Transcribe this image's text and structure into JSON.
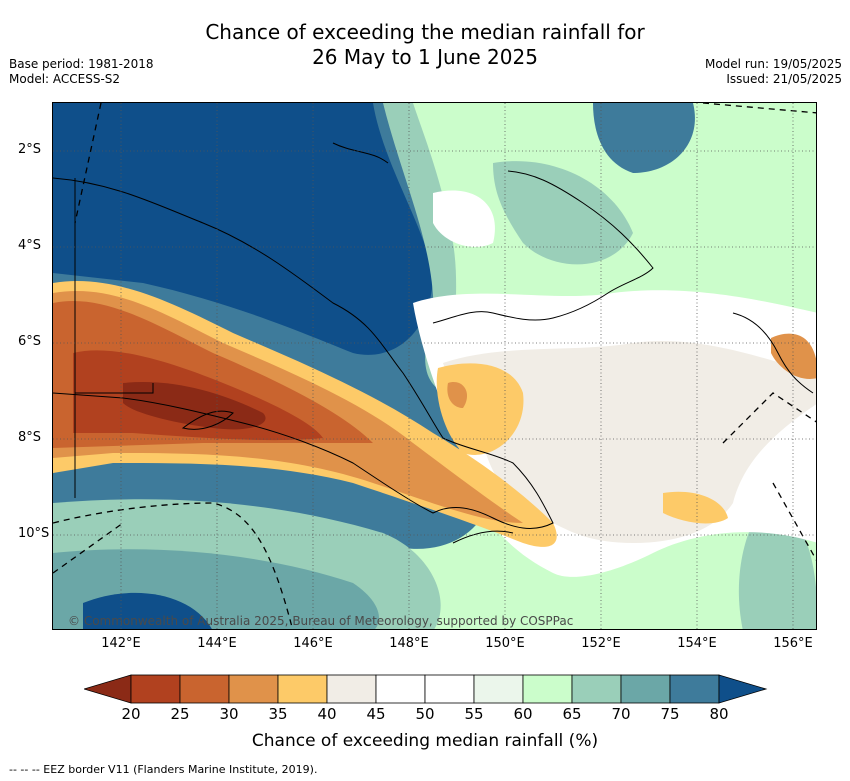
{
  "title_line1": "Chance of exceeding the median rainfall for",
  "title_line2": "26 May to 1 June 2025",
  "base_period": "Base period: 1981-2018",
  "model": "Model: ACCESS-S2",
  "model_run": "Model run: 19/05/2025",
  "issued": "Issued: 21/05/2025",
  "x_ticks": [
    "142°E",
    "144°E",
    "146°E",
    "148°E",
    "150°E",
    "152°E",
    "154°E",
    "156°E"
  ],
  "y_ticks": [
    "2°S",
    "4°S",
    "6°S",
    "8°S",
    "10°S"
  ],
  "credit": "© Commonwealth of Australia 2025, Bureau of Meteorology, supported by COSPPac",
  "legend": {
    "title": "Chance of exceeding median rainfall (%)",
    "labels": [
      "20",
      "25",
      "30",
      "35",
      "40",
      "45",
      "50",
      "55",
      "60",
      "65",
      "70",
      "75",
      "80"
    ],
    "colors": [
      "#8b2a16",
      "#b1411f",
      "#c9642f",
      "#e0924a",
      "#fdca68",
      "#f1ede6",
      "#ffffff",
      "#ffffff",
      "#ebf6eb",
      "#cbfdcb",
      "#9acfb9",
      "#6ba7a7",
      "#3e7b9b",
      "#0f4f8a"
    ]
  },
  "eez_note": "-- -- -- EEZ border V11 (Flanders Marine Institute, 2019)."
}
